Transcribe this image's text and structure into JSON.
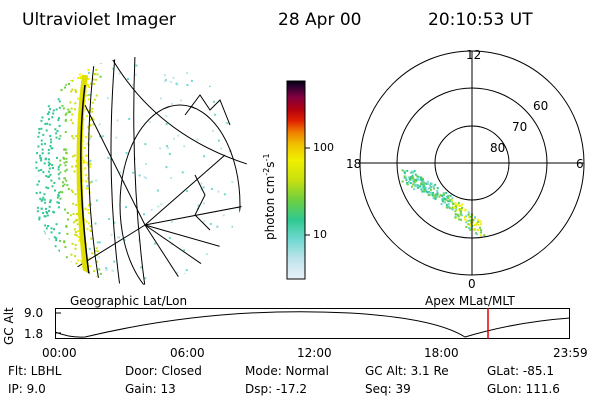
{
  "header": {
    "instrument": "Ultraviolet Imager",
    "date": "28 Apr 00",
    "time": "20:10:53 UT"
  },
  "colorbar": {
    "label": "photon cm",
    "label_exp1": "-2",
    "label_s": "s",
    "label_exp2": "-1",
    "tick_high": "100",
    "tick_low": "10"
  },
  "polar": {
    "mlt_labels": {
      "top": "12",
      "right": "6",
      "bottom": "0",
      "left": "18"
    },
    "lat_labels": [
      "60",
      "70",
      "80"
    ]
  },
  "projections": {
    "left": "Geographic Lat/Lon",
    "right": "Apex MLat/MLT"
  },
  "altitude_plot": {
    "ylabel": "GC Alt",
    "yticks": [
      "9.0",
      "1.8"
    ],
    "xticks": [
      "00:00",
      "06:00",
      "12:00",
      "18:00",
      "23:59"
    ],
    "current_marker_color": "#e00000"
  },
  "info": {
    "row1": [
      "Flt: LBHL",
      "Door: Closed",
      "Mode: Normal",
      "GC Alt: 3.1 Re",
      "GLat: -85.1"
    ],
    "row2": [
      "IP: 9.0",
      "Gain: 13",
      "Dsp:  -17.2",
      "Seq: 39",
      "GLon: 111.6"
    ]
  },
  "colors": {
    "scale": [
      "#e8f0f8",
      "#c0e4ec",
      "#70d8d0",
      "#30c890",
      "#70d040",
      "#c8e010",
      "#f0f000",
      "#f0c000",
      "#f08000",
      "#e02000",
      "#b00010",
      "#800040",
      "#300030",
      "#000010"
    ]
  }
}
